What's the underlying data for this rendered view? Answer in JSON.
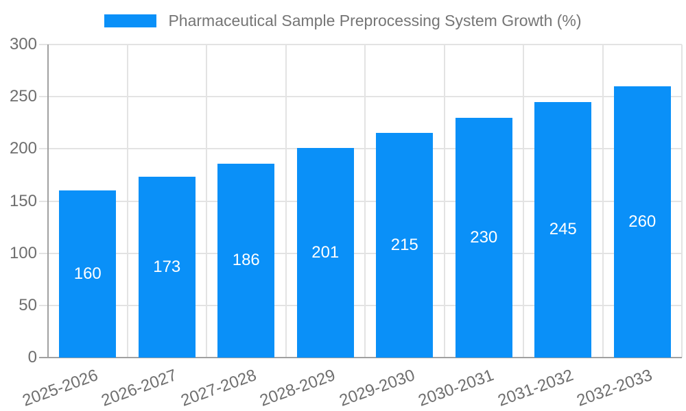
{
  "chart_data": {
    "type": "bar",
    "title": "Pharmaceutical Sample Preprocessing System Growth (%)",
    "categories": [
      "2025-2026",
      "2026-2027",
      "2027-2028",
      "2028-2029",
      "2029-2030",
      "2030-2031",
      "2031-2032",
      "2032-2033"
    ],
    "series": [
      {
        "name": "Pharmaceutical Sample Preprocessing System Growth (%)",
        "values": [
          160,
          173,
          186,
          201,
          215,
          230,
          245,
          260
        ]
      }
    ],
    "y_ticks": [
      0,
      50,
      100,
      150,
      200,
      250,
      300
    ],
    "ylim": [
      0,
      300
    ],
    "xlabel": "",
    "ylabel": "",
    "grid": true,
    "legend_position": "top-center",
    "x_label_rotation_deg": -20,
    "bar_value_labels_shown": true,
    "colors": {
      "bar": "#0a90f8",
      "bar_label_text": "#ffffff",
      "legend_text": "#757575",
      "axis_text": "#6e6e6e",
      "grid_line": "#e3e3e3",
      "axis_line": "#a0a0a0",
      "background": "#ffffff"
    }
  }
}
